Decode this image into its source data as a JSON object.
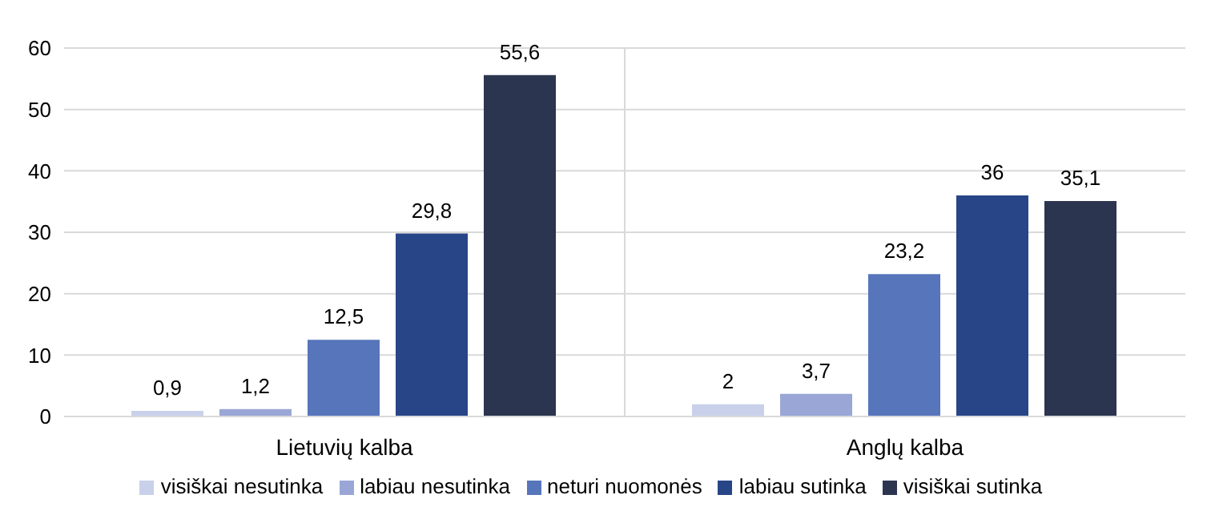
{
  "chart_data": {
    "type": "bar",
    "categories": [
      "Lietuvių kalba",
      "Anglų kalba"
    ],
    "series": [
      {
        "name": "visiškai nesutinka",
        "color": "#c9d0ea",
        "values": [
          0.9,
          2
        ],
        "value_labels": [
          "0,9",
          "2"
        ]
      },
      {
        "name": "labiau nesutinka",
        "color": "#9aa6d6",
        "values": [
          1.2,
          3.7
        ],
        "value_labels": [
          "1,2",
          "3,7"
        ]
      },
      {
        "name": "neturi nuomonės",
        "color": "#5675bb",
        "values": [
          12.5,
          23.2
        ],
        "value_labels": [
          "12,5",
          "23,2"
        ]
      },
      {
        "name": "labiau sutinka",
        "color": "#284587",
        "values": [
          29.8,
          36
        ],
        "value_labels": [
          "29,8",
          "36"
        ]
      },
      {
        "name": "visiškai sutinka",
        "color": "#2c354f",
        "values": [
          55.6,
          35.1
        ],
        "value_labels": [
          "55,6",
          "35,1"
        ]
      }
    ],
    "ylim": [
      0,
      60
    ],
    "yticks": [
      0,
      10,
      20,
      30,
      40,
      50,
      60
    ],
    "grid": true,
    "legend": "bottom"
  }
}
